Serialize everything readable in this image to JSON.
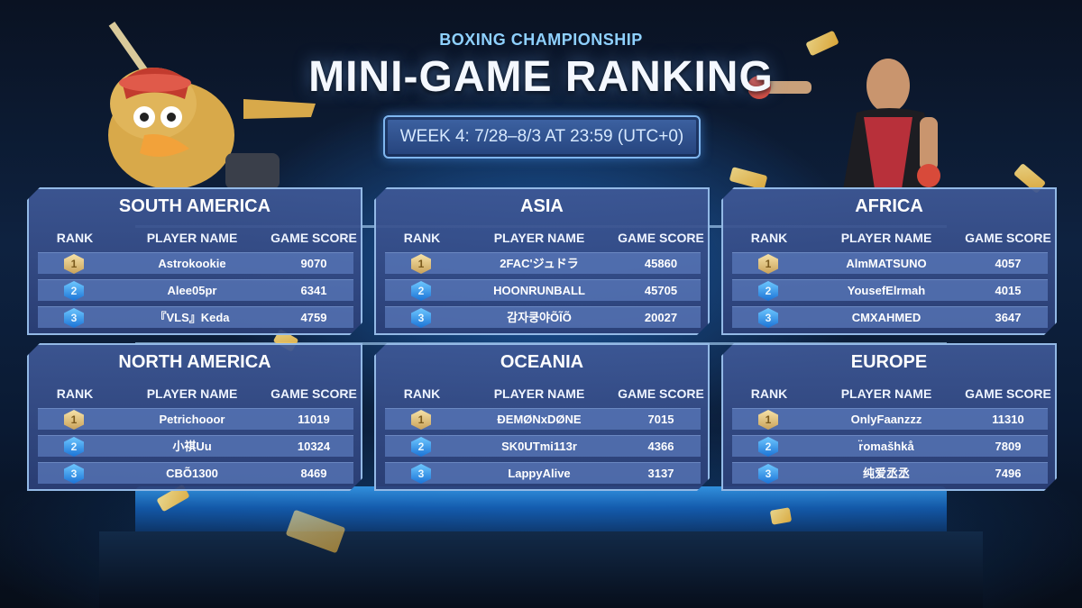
{
  "header": {
    "subtitle": "BOXING CHAMPIONSHIP",
    "title": "MINI-GAME RANKING",
    "week": "WEEK 4: 7/28–8/3 AT 23:59 (UTC+0)"
  },
  "columns": {
    "rank": "RANK",
    "player": "PLAYER NAME",
    "score": "GAME SCORE"
  },
  "regions": [
    {
      "name": "SOUTH AMERICA",
      "rows": [
        {
          "rank": "1",
          "player": "Astrokookie",
          "score": "9070"
        },
        {
          "rank": "2",
          "player": "Alee05pr",
          "score": "6341"
        },
        {
          "rank": "3",
          "player": "『VLS』Keda",
          "score": "4759"
        }
      ]
    },
    {
      "name": "ASIA",
      "rows": [
        {
          "rank": "1",
          "player": "2FAC'ジュドラ",
          "score": "45860"
        },
        {
          "rank": "2",
          "player": "HOONRUNBALL",
          "score": "45705"
        },
        {
          "rank": "3",
          "player": "감자쿵야ÕĨÕ",
          "score": "20027"
        }
      ]
    },
    {
      "name": "AFRICA",
      "rows": [
        {
          "rank": "1",
          "player": "AlmMATSUNO",
          "score": "4057"
        },
        {
          "rank": "2",
          "player": "YousefElrmah",
          "score": "4015"
        },
        {
          "rank": "3",
          "player": "CMXAHMED",
          "score": "3647"
        }
      ]
    },
    {
      "name": "NORTH AMERICA",
      "rows": [
        {
          "rank": "1",
          "player": "Petrichooor",
          "score": "11019"
        },
        {
          "rank": "2",
          "player": "小祺Uu",
          "score": "10324"
        },
        {
          "rank": "3",
          "player": "CBÕ1300",
          "score": "8469"
        }
      ]
    },
    {
      "name": "OCEANIA",
      "rows": [
        {
          "rank": "1",
          "player": "ĐEMØNxDØNE",
          "score": "7015"
        },
        {
          "rank": "2",
          "player": "SK0UTmi113r",
          "score": "4366"
        },
        {
          "rank": "3",
          "player": "LappyAlive",
          "score": "3137"
        }
      ]
    },
    {
      "name": "EUROPE",
      "rows": [
        {
          "rank": "1",
          "player": "OnlyFaanzzz",
          "score": "11310"
        },
        {
          "rank": "2",
          "player": "r̈omašhkå",
          "score": "7809"
        },
        {
          "rank": "3",
          "player": "纯爱丞丞",
          "score": "7496"
        }
      ]
    }
  ],
  "colors": {
    "gold_badge": "#c9a25a",
    "blue_badge": "#1b73d6",
    "panel": "#3e5896",
    "accent": "#8fd1ff"
  },
  "icons": {
    "rank_badge": "hexagon-medal-icon",
    "left_character": "duck-plunger-character",
    "right_character": "boxer-character"
  }
}
